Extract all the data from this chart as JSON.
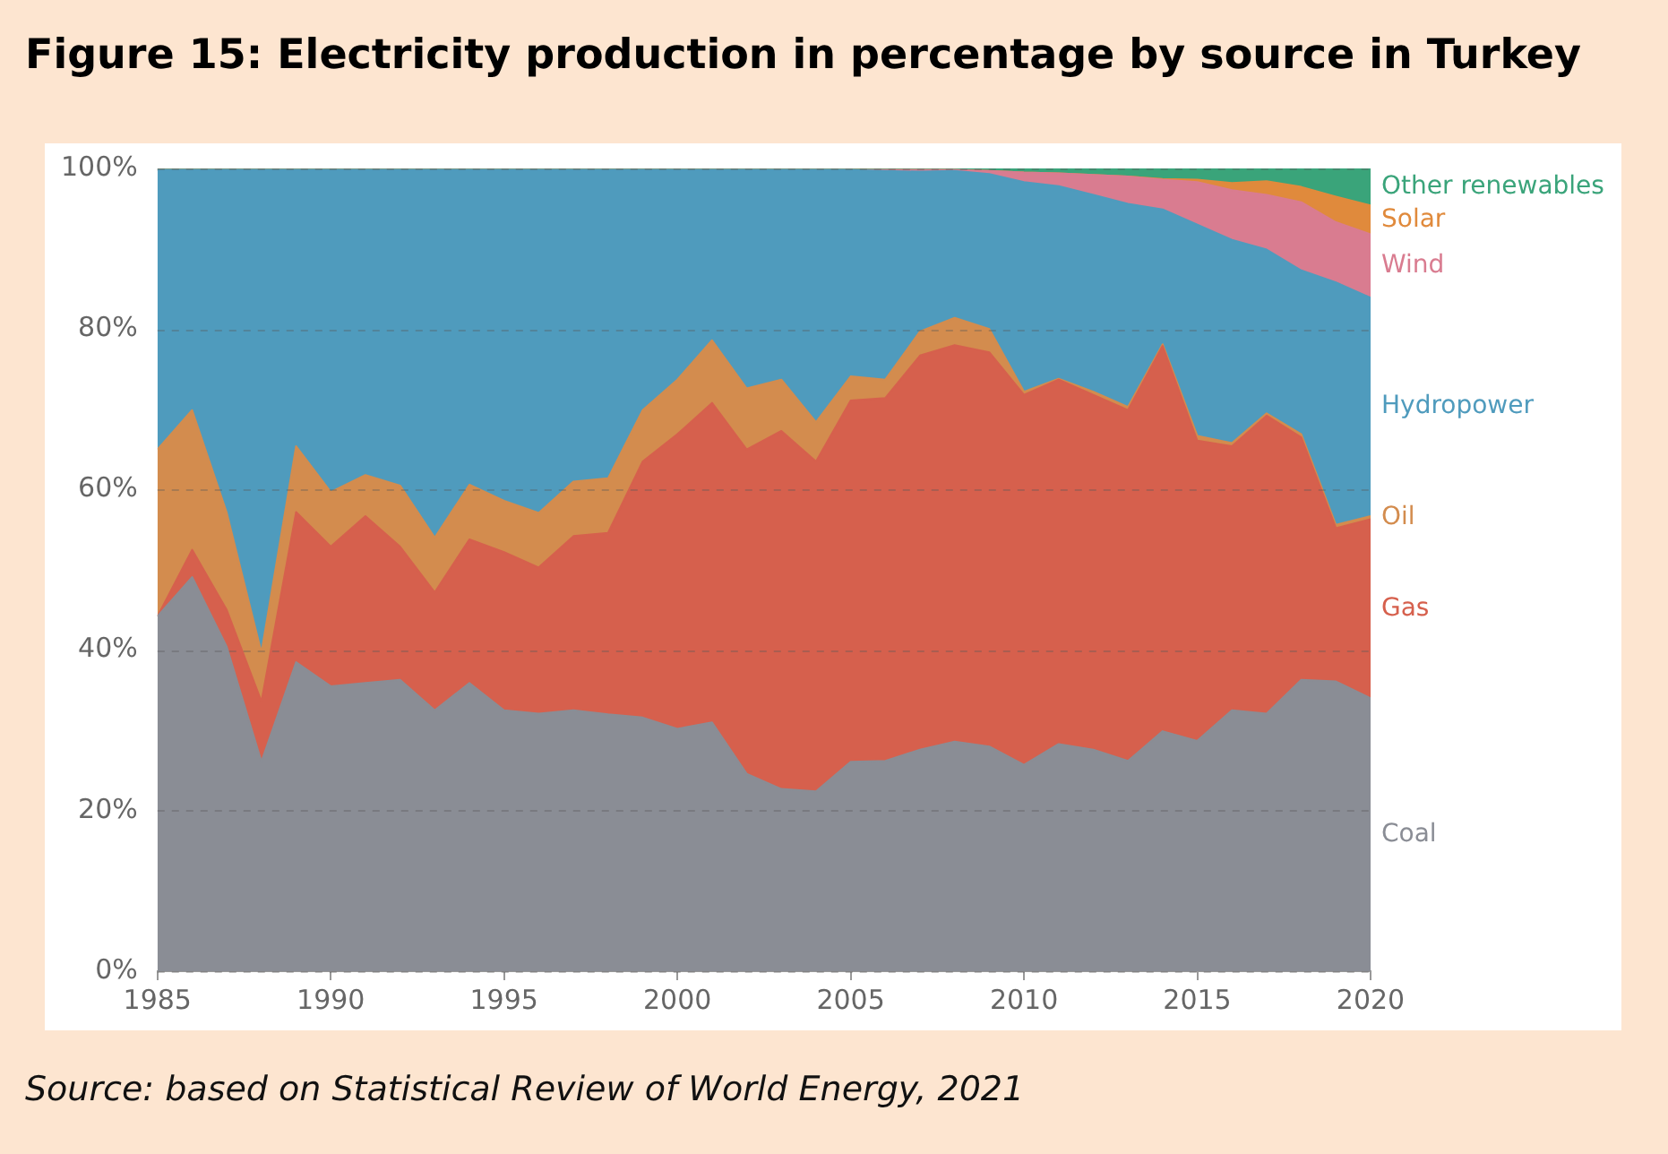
{
  "chart_data": {
    "type": "area",
    "stacked": true,
    "title": "Figure 15: Electricity production in percentage by source in Turkey",
    "annotations": [
      "Source: based on Statistical Review of World Energy, 2021"
    ],
    "x": [
      1985,
      1986,
      1987,
      1988,
      1989,
      1990,
      1991,
      1992,
      1993,
      1994,
      1995,
      1996,
      1997,
      1998,
      1999,
      2000,
      2001,
      2002,
      2003,
      2004,
      2005,
      2006,
      2007,
      2008,
      2009,
      2010,
      2011,
      2012,
      2013,
      2014,
      2015,
      2016,
      2017,
      2018,
      2019,
      2020
    ],
    "xlim": [
      1985,
      2020
    ],
    "xticks": [
      1985,
      1990,
      1995,
      2000,
      2005,
      2010,
      2015,
      2020
    ],
    "ylim": [
      0,
      100
    ],
    "yticks": [
      {
        "value": 0,
        "label": "0%"
      },
      {
        "value": 20,
        "label": "20%"
      },
      {
        "value": 40,
        "label": "40%"
      },
      {
        "value": 60,
        "label": "60%"
      },
      {
        "value": 80,
        "label": "80%"
      },
      {
        "value": 100,
        "label": "100%"
      }
    ],
    "grid": "y",
    "legend": false,
    "marker": "none",
    "series": [
      {
        "name": "Coal",
        "color": "#8a8d95",
        "values": [
          44.2,
          49.1,
          40.4,
          26.1,
          38.5,
          35.5,
          35.9,
          36.3,
          32.5,
          35.9,
          32.5,
          32.1,
          32.5,
          32.0,
          31.6,
          30.2,
          31.0,
          24.6,
          22.7,
          22.4,
          26.1,
          26.2,
          27.6,
          28.6,
          28.0,
          25.7,
          28.3,
          27.6,
          26.2,
          29.9,
          28.7,
          32.5,
          32.1,
          36.3,
          36.1,
          34.0
        ]
      },
      {
        "name": "Gas",
        "color": "#d6604d",
        "values": [
          0.0,
          3.4,
          4.6,
          7.5,
          18.7,
          17.4,
          20.8,
          16.6,
          14.7,
          17.9,
          19.7,
          18.2,
          21.7,
          22.6,
          31.9,
          36.7,
          39.8,
          40.4,
          44.6,
          41.1,
          45.0,
          45.2,
          49.1,
          49.4,
          49.1,
          46.1,
          45.4,
          44.2,
          43.7,
          48.0,
          37.4,
          32.9,
          37.1,
          30.2,
          19.1,
          22.3
        ]
      },
      {
        "name": "Oil",
        "color": "#d38c4e",
        "values": [
          20.8,
          17.4,
          12.1,
          6.1,
          8.2,
          6.8,
          5.1,
          7.6,
          6.8,
          6.8,
          6.4,
          6.8,
          6.8,
          6.8,
          6.4,
          6.8,
          7.8,
          7.6,
          6.4,
          4.9,
          3.0,
          2.3,
          3.0,
          3.4,
          2.9,
          0.4,
          0.1,
          0.4,
          0.4,
          0.2,
          0.6,
          0.4,
          0.3,
          0.4,
          0.4,
          0.4
        ]
      },
      {
        "name": "Hydropower",
        "color": "#4f9bbd",
        "values": [
          34.8,
          29.9,
          42.7,
          60.1,
          34.4,
          40.1,
          38.0,
          39.3,
          45.8,
          39.2,
          41.2,
          42.7,
          38.8,
          38.4,
          29.9,
          26.1,
          21.2,
          27.2,
          26.1,
          31.4,
          25.7,
          26.0,
          19.9,
          18.3,
          19.3,
          26.1,
          24.0,
          24.5,
          25.3,
          16.8,
          26.3,
          25.3,
          20.4,
          20.4,
          30.2,
          27.2
        ]
      },
      {
        "name": "Wind",
        "color": "#d97c90",
        "values": [
          0,
          0,
          0,
          0,
          0,
          0,
          0,
          0,
          0,
          0,
          0,
          0,
          0,
          0,
          0,
          0,
          0,
          0,
          0,
          0,
          0,
          0.1,
          0.2,
          0.1,
          0.4,
          1.2,
          1.6,
          2.5,
          3.4,
          3.7,
          5.3,
          6.2,
          6.8,
          8.5,
          7.5,
          7.9
        ]
      },
      {
        "name": "Solar",
        "color": "#e08a3c",
        "values": [
          0,
          0,
          0,
          0,
          0,
          0,
          0,
          0,
          0,
          0,
          0,
          0,
          0,
          0,
          0,
          0,
          0,
          0,
          0,
          0,
          0,
          0,
          0,
          0,
          0,
          0,
          0,
          0,
          0,
          0.1,
          0.3,
          0.9,
          1.7,
          1.9,
          3.2,
          3.6
        ]
      },
      {
        "name": "Other renewables",
        "color": "#3aa47a",
        "values": [
          0.2,
          0.2,
          0.2,
          0.2,
          0.2,
          0.2,
          0.2,
          0.2,
          0.2,
          0.2,
          0.2,
          0.2,
          0.2,
          0.2,
          0.2,
          0.2,
          0.2,
          0.2,
          0.2,
          0.2,
          0.2,
          0.2,
          0.2,
          0.2,
          0.3,
          0.5,
          0.6,
          0.8,
          1.0,
          1.3,
          1.4,
          1.8,
          1.6,
          2.3,
          3.5,
          4.6
        ]
      }
    ]
  }
}
